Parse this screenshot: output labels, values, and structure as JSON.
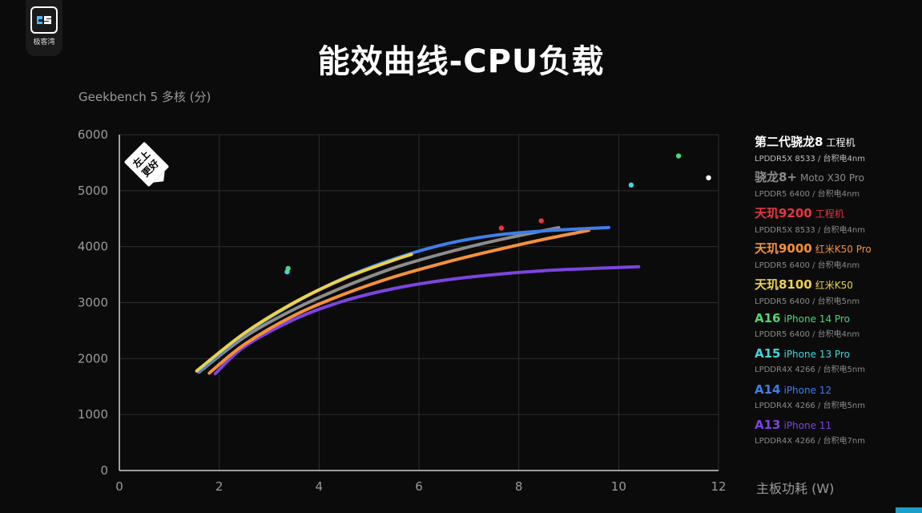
{
  "brand": {
    "name": "极客湾",
    "logo_icon": "geekerwan-logo-icon"
  },
  "title": "能效曲线-CPU负载",
  "chart_data": {
    "type": "line",
    "title": "能效曲线-CPU负载",
    "ylabel": "Geekbench 5 多核 (分)",
    "xlabel": "主板功耗 (W)",
    "xlim": [
      0,
      12
    ],
    "ylim": [
      0,
      6000
    ],
    "xticks": [
      "0",
      "2",
      "4",
      "6",
      "8",
      "10",
      "12"
    ],
    "yticks": [
      "0",
      "1000",
      "2000",
      "3000",
      "4000",
      "5000",
      "6000"
    ],
    "grid": true,
    "legend_position": "right",
    "badge": {
      "line1": "左上",
      "line2": "更好"
    },
    "series": [
      {
        "name": "第二代骁龙8",
        "model": "工程机",
        "spec": "LPDDR5X 8533 / 台积电4nm",
        "color": "#ffffff",
        "kind": "point",
        "points": [
          [
            11.8,
            5230
          ]
        ]
      },
      {
        "name": "骁龙8+",
        "model": "Moto X30 Pro",
        "spec": "LPDDR5 6400 / 台积电4nm",
        "color": "#8c8c8c",
        "kind": "line",
        "points": [
          [
            1.6,
            1760
          ],
          [
            2.5,
            2380
          ],
          [
            3.5,
            2880
          ],
          [
            4.5,
            3280
          ],
          [
            5.5,
            3620
          ],
          [
            6.5,
            3880
          ],
          [
            7.5,
            4100
          ],
          [
            8.8,
            4340
          ]
        ]
      },
      {
        "name": "天玑9200",
        "model": "工程机",
        "spec": "LPDDR5X 8533 / 台积电4nm",
        "color": "#e8363f",
        "kind": "point",
        "points": [
          [
            7.65,
            4330
          ],
          [
            8.45,
            4460
          ]
        ]
      },
      {
        "name": "天玑9000",
        "model": "红米K50 Pro",
        "spec": "LPDDR5 6400 / 台积电4nm",
        "color": "#f5913b",
        "kind": "line",
        "points": [
          [
            1.8,
            1740
          ],
          [
            2.5,
            2250
          ],
          [
            3.5,
            2770
          ],
          [
            4.5,
            3150
          ],
          [
            5.5,
            3460
          ],
          [
            6.5,
            3710
          ],
          [
            7.5,
            3930
          ],
          [
            8.5,
            4130
          ],
          [
            9.4,
            4290
          ]
        ]
      },
      {
        "name": "天玑8100",
        "model": "红米K50",
        "spec": "LPDDR5 6400 / 台积电5nm",
        "color": "#ecd24a",
        "kind": "line",
        "points": [
          [
            1.55,
            1780
          ],
          [
            2.5,
            2450
          ],
          [
            3.5,
            3000
          ],
          [
            4.5,
            3430
          ],
          [
            5.5,
            3760
          ],
          [
            5.85,
            3860
          ]
        ]
      },
      {
        "name": "A16",
        "model": "iPhone 14 Pro",
        "spec": "LPDDR5 6400 / 台积电4nm",
        "color": "#4ed870",
        "kind": "point",
        "points": [
          [
            3.38,
            3610
          ],
          [
            11.2,
            5620
          ]
        ]
      },
      {
        "name": "A15",
        "model": "iPhone 13 Pro",
        "spec": "LPDDR4X 4266 / 台积电5nm",
        "color": "#3fd8d8",
        "kind": "point",
        "points": [
          [
            3.36,
            3550
          ],
          [
            10.25,
            5100
          ]
        ]
      },
      {
        "name": "A14",
        "model": "iPhone 12",
        "spec": "LPDDR4X 4266 / 台积电5nm",
        "color": "#3f7fe8",
        "kind": "line",
        "points": [
          [
            1.58,
            1760
          ],
          [
            2.5,
            2430
          ],
          [
            3.5,
            2990
          ],
          [
            4.5,
            3440
          ],
          [
            5.5,
            3780
          ],
          [
            6.5,
            4040
          ],
          [
            7.5,
            4200
          ],
          [
            8.5,
            4280
          ],
          [
            9.8,
            4340
          ]
        ]
      },
      {
        "name": "A13",
        "model": "iPhone 11",
        "spec": "LPDDR4X 4266 / 台积电7nm",
        "color": "#7b45e0",
        "kind": "line",
        "points": [
          [
            1.92,
            1730
          ],
          [
            2.5,
            2210
          ],
          [
            3.5,
            2700
          ],
          [
            4.5,
            3030
          ],
          [
            5.5,
            3250
          ],
          [
            6.5,
            3400
          ],
          [
            7.5,
            3500
          ],
          [
            8.5,
            3570
          ],
          [
            9.5,
            3610
          ],
          [
            10.4,
            3640
          ]
        ]
      }
    ]
  }
}
